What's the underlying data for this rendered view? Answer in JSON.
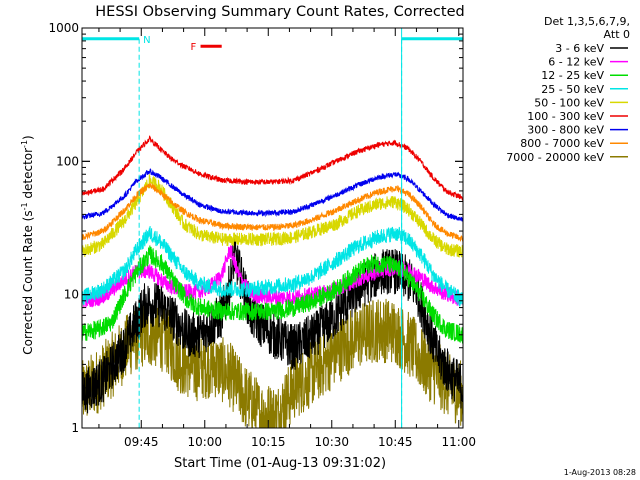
{
  "chart_data": {
    "type": "line",
    "title": "HESSI Observing Summary Count Rates, Corrected",
    "xlabel": "Start Time (01-Aug-13 09:31:02)",
    "ylabel_parts": [
      "Corrected Count Rate (s",
      "-1",
      " detector",
      "-1",
      ")"
    ],
    "yscale": "log",
    "ylim": [
      1,
      1000
    ],
    "y_ticks": [
      {
        "value": 1,
        "label": "1"
      },
      {
        "value": 10,
        "label": "10"
      },
      {
        "value": 100,
        "label": "100"
      },
      {
        "value": 1000,
        "label": "1000"
      }
    ],
    "xlim_minutes": [
      0,
      90
    ],
    "x_ticks": [
      {
        "minute": 14,
        "label": "09:45"
      },
      {
        "minute": 29,
        "label": "10:00"
      },
      {
        "minute": 44,
        "label": "10:15"
      },
      {
        "minute": 59,
        "label": "10:30"
      },
      {
        "minute": 74,
        "label": "10:45"
      },
      {
        "minute": 89,
        "label": "11:00"
      }
    ],
    "legend": {
      "placement": "right",
      "header": [
        "Det 1,3,5,6,7,9,",
        "Att 0"
      ],
      "entries": [
        {
          "label": "3 - 6 keV",
          "color": "#000000"
        },
        {
          "label": "6 - 12 keV",
          "color": "#ff00ff"
        },
        {
          "label": "12 - 25 keV",
          "color": "#00dd00"
        },
        {
          "label": "25 - 50 keV",
          "color": "#00e5e5"
        },
        {
          "label": "50 - 100 keV",
          "color": "#d8d800"
        },
        {
          "label": "100 - 300 keV",
          "color": "#ee0000"
        },
        {
          "label": "300 - 800 keV",
          "color": "#0000ee"
        },
        {
          "label": "800 - 7000 keV",
          "color": "#ff8800"
        },
        {
          "label": "7000 - 20000 keV",
          "color": "#8b7a00"
        }
      ]
    },
    "series": [
      {
        "name": "3 - 6 keV",
        "color": "#000000",
        "noise": 0.35,
        "points": [
          [
            0,
            1.8
          ],
          [
            5,
            2.3
          ],
          [
            10,
            4
          ],
          [
            13,
            6.5
          ],
          [
            15,
            8.5
          ],
          [
            18,
            8.5
          ],
          [
            21,
            7
          ],
          [
            25,
            5
          ],
          [
            28,
            5
          ],
          [
            33,
            7
          ],
          [
            35,
            12
          ],
          [
            36,
            20
          ],
          [
            38,
            12
          ],
          [
            40,
            7
          ],
          [
            45,
            5
          ],
          [
            50,
            4
          ],
          [
            55,
            5
          ],
          [
            60,
            7
          ],
          [
            64,
            10
          ],
          [
            68,
            13
          ],
          [
            71,
            15
          ],
          [
            74,
            15
          ],
          [
            77,
            13
          ],
          [
            79,
            11
          ],
          [
            81,
            7
          ],
          [
            84,
            3.5
          ],
          [
            87,
            2.5
          ],
          [
            90,
            2
          ]
        ]
      },
      {
        "name": "6 - 12 keV",
        "color": "#ff00ff",
        "noise": 0.12,
        "points": [
          [
            0,
            9
          ],
          [
            5,
            9.5
          ],
          [
            10,
            13
          ],
          [
            13,
            15
          ],
          [
            16,
            15
          ],
          [
            20,
            12
          ],
          [
            24,
            10.5
          ],
          [
            28,
            10.5
          ],
          [
            31,
            12
          ],
          [
            33,
            14
          ],
          [
            35,
            22
          ],
          [
            37,
            14
          ],
          [
            40,
            10
          ],
          [
            45,
            9.5
          ],
          [
            50,
            9.5
          ],
          [
            55,
            10
          ],
          [
            60,
            11
          ],
          [
            65,
            13
          ],
          [
            70,
            15
          ],
          [
            74,
            16
          ],
          [
            78,
            15
          ],
          [
            82,
            12
          ],
          [
            85,
            10.5
          ],
          [
            90,
            9
          ]
        ]
      },
      {
        "name": "12 - 25 keV",
        "color": "#00dd00",
        "noise": 0.14,
        "points": [
          [
            0,
            5.2
          ],
          [
            4,
            5.5
          ],
          [
            7,
            6.2
          ],
          [
            10,
            10
          ],
          [
            13,
            15
          ],
          [
            16,
            20
          ],
          [
            19,
            17
          ],
          [
            22,
            12
          ],
          [
            25,
            9
          ],
          [
            28,
            8
          ],
          [
            33,
            7.5
          ],
          [
            38,
            7.5
          ],
          [
            45,
            7.5
          ],
          [
            50,
            8
          ],
          [
            55,
            9
          ],
          [
            60,
            11
          ],
          [
            64,
            14
          ],
          [
            68,
            17
          ],
          [
            72,
            17
          ],
          [
            76,
            15
          ],
          [
            80,
            10
          ],
          [
            83,
            7
          ],
          [
            86,
            5.5
          ],
          [
            90,
            5
          ]
        ]
      },
      {
        "name": "25 - 50 keV",
        "color": "#00e5e5",
        "noise": 0.12,
        "points": [
          [
            0,
            9.5
          ],
          [
            5,
            11
          ],
          [
            10,
            15
          ],
          [
            13,
            22
          ],
          [
            16,
            29
          ],
          [
            18,
            26
          ],
          [
            21,
            20
          ],
          [
            24,
            15
          ],
          [
            28,
            12
          ],
          [
            33,
            11
          ],
          [
            40,
            11
          ],
          [
            45,
            11.5
          ],
          [
            50,
            12
          ],
          [
            55,
            14
          ],
          [
            60,
            18
          ],
          [
            65,
            23
          ],
          [
            70,
            27
          ],
          [
            74,
            29
          ],
          [
            77,
            26
          ],
          [
            80,
            20
          ],
          [
            83,
            14
          ],
          [
            86,
            11
          ],
          [
            90,
            9
          ]
        ]
      },
      {
        "name": "50 - 100 keV",
        "color": "#d8d800",
        "noise": 0.1,
        "points": [
          [
            0,
            21
          ],
          [
            5,
            24
          ],
          [
            10,
            36
          ],
          [
            13,
            50
          ],
          [
            16,
            72
          ],
          [
            18,
            66
          ],
          [
            21,
            48
          ],
          [
            24,
            34
          ],
          [
            28,
            28
          ],
          [
            33,
            26
          ],
          [
            40,
            26
          ],
          [
            45,
            26
          ],
          [
            50,
            27
          ],
          [
            55,
            30
          ],
          [
            60,
            34
          ],
          [
            65,
            42
          ],
          [
            70,
            48
          ],
          [
            74,
            50
          ],
          [
            77,
            44
          ],
          [
            80,
            34
          ],
          [
            83,
            26
          ],
          [
            86,
            22
          ],
          [
            90,
            21
          ]
        ]
      },
      {
        "name": "100 - 300 keV",
        "color": "#ee0000",
        "noise": 0.04,
        "points": [
          [
            0,
            57
          ],
          [
            5,
            62
          ],
          [
            10,
            88
          ],
          [
            13,
            118
          ],
          [
            16,
            148
          ],
          [
            18,
            128
          ],
          [
            21,
            105
          ],
          [
            24,
            92
          ],
          [
            28,
            80
          ],
          [
            33,
            72
          ],
          [
            40,
            70
          ],
          [
            45,
            70
          ],
          [
            50,
            72
          ],
          [
            55,
            84
          ],
          [
            60,
            100
          ],
          [
            65,
            118
          ],
          [
            70,
            133
          ],
          [
            74,
            138
          ],
          [
            77,
            125
          ],
          [
            80,
            100
          ],
          [
            83,
            75
          ],
          [
            86,
            60
          ],
          [
            90,
            53
          ]
        ]
      },
      {
        "name": "300 - 800 keV",
        "color": "#0000ee",
        "noise": 0.04,
        "points": [
          [
            0,
            38
          ],
          [
            5,
            41
          ],
          [
            10,
            55
          ],
          [
            13,
            72
          ],
          [
            16,
            84
          ],
          [
            18,
            78
          ],
          [
            21,
            66
          ],
          [
            24,
            56
          ],
          [
            28,
            47
          ],
          [
            33,
            42
          ],
          [
            40,
            41
          ],
          [
            45,
            41
          ],
          [
            50,
            42
          ],
          [
            55,
            48
          ],
          [
            60,
            56
          ],
          [
            65,
            66
          ],
          [
            70,
            76
          ],
          [
            74,
            80
          ],
          [
            77,
            74
          ],
          [
            80,
            60
          ],
          [
            83,
            48
          ],
          [
            86,
            40
          ],
          [
            90,
            36
          ]
        ]
      },
      {
        "name": "800 - 7000 keV",
        "color": "#ff8800",
        "noise": 0.05,
        "points": [
          [
            0,
            27
          ],
          [
            5,
            30
          ],
          [
            10,
            43
          ],
          [
            13,
            56
          ],
          [
            16,
            66
          ],
          [
            18,
            60
          ],
          [
            21,
            50
          ],
          [
            24,
            42
          ],
          [
            28,
            36
          ],
          [
            33,
            33
          ],
          [
            40,
            32
          ],
          [
            45,
            32
          ],
          [
            50,
            33
          ],
          [
            55,
            37
          ],
          [
            60,
            43
          ],
          [
            65,
            51
          ],
          [
            70,
            59
          ],
          [
            74,
            63
          ],
          [
            77,
            57
          ],
          [
            80,
            46
          ],
          [
            83,
            34
          ],
          [
            86,
            29
          ],
          [
            90,
            26
          ]
        ]
      },
      {
        "name": "7000 - 20000 keV",
        "color": "#8b7a00",
        "noise": 0.5,
        "points": [
          [
            0,
            1.8
          ],
          [
            4,
            2.3
          ],
          [
            8,
            3.2
          ],
          [
            11,
            4.2
          ],
          [
            14,
            5
          ],
          [
            17,
            5
          ],
          [
            20,
            4.5
          ],
          [
            22,
            3.5
          ],
          [
            24,
            3
          ],
          [
            27,
            2.8
          ],
          [
            31,
            3
          ],
          [
            35,
            2.5
          ],
          [
            38,
            1.8
          ],
          [
            42,
            1.3
          ],
          [
            46,
            1.2
          ],
          [
            50,
            2
          ],
          [
            54,
            2.5
          ],
          [
            58,
            3.2
          ],
          [
            62,
            4.2
          ],
          [
            66,
            5
          ],
          [
            70,
            5.5
          ],
          [
            74,
            5.3
          ],
          [
            78,
            4
          ],
          [
            81,
            3
          ],
          [
            84,
            2.5
          ],
          [
            87,
            2
          ],
          [
            90,
            1.8
          ]
        ]
      }
    ],
    "markers": [
      {
        "name": "N",
        "color": "#00e5e5",
        "segments": [
          [
            0,
            13.5
          ],
          [
            75.5,
            90
          ]
        ],
        "vlines": [
          13.5,
          75.5
        ],
        "vline_styles": [
          "dashed",
          "dashed"
        ],
        "level": 830
      },
      {
        "name": "F",
        "color": "#ee0000",
        "segments": [
          [
            28,
            33
          ]
        ],
        "level": 730
      }
    ],
    "edge_lines": [
      {
        "minute": 0,
        "color": "#00e5e5"
      },
      {
        "minute": 75.5,
        "color": "#00e5e5"
      },
      {
        "minute": 90,
        "color": "#00e5e5"
      }
    ]
  },
  "footer": {
    "timestamp": "1-Aug-2013 08:28"
  }
}
